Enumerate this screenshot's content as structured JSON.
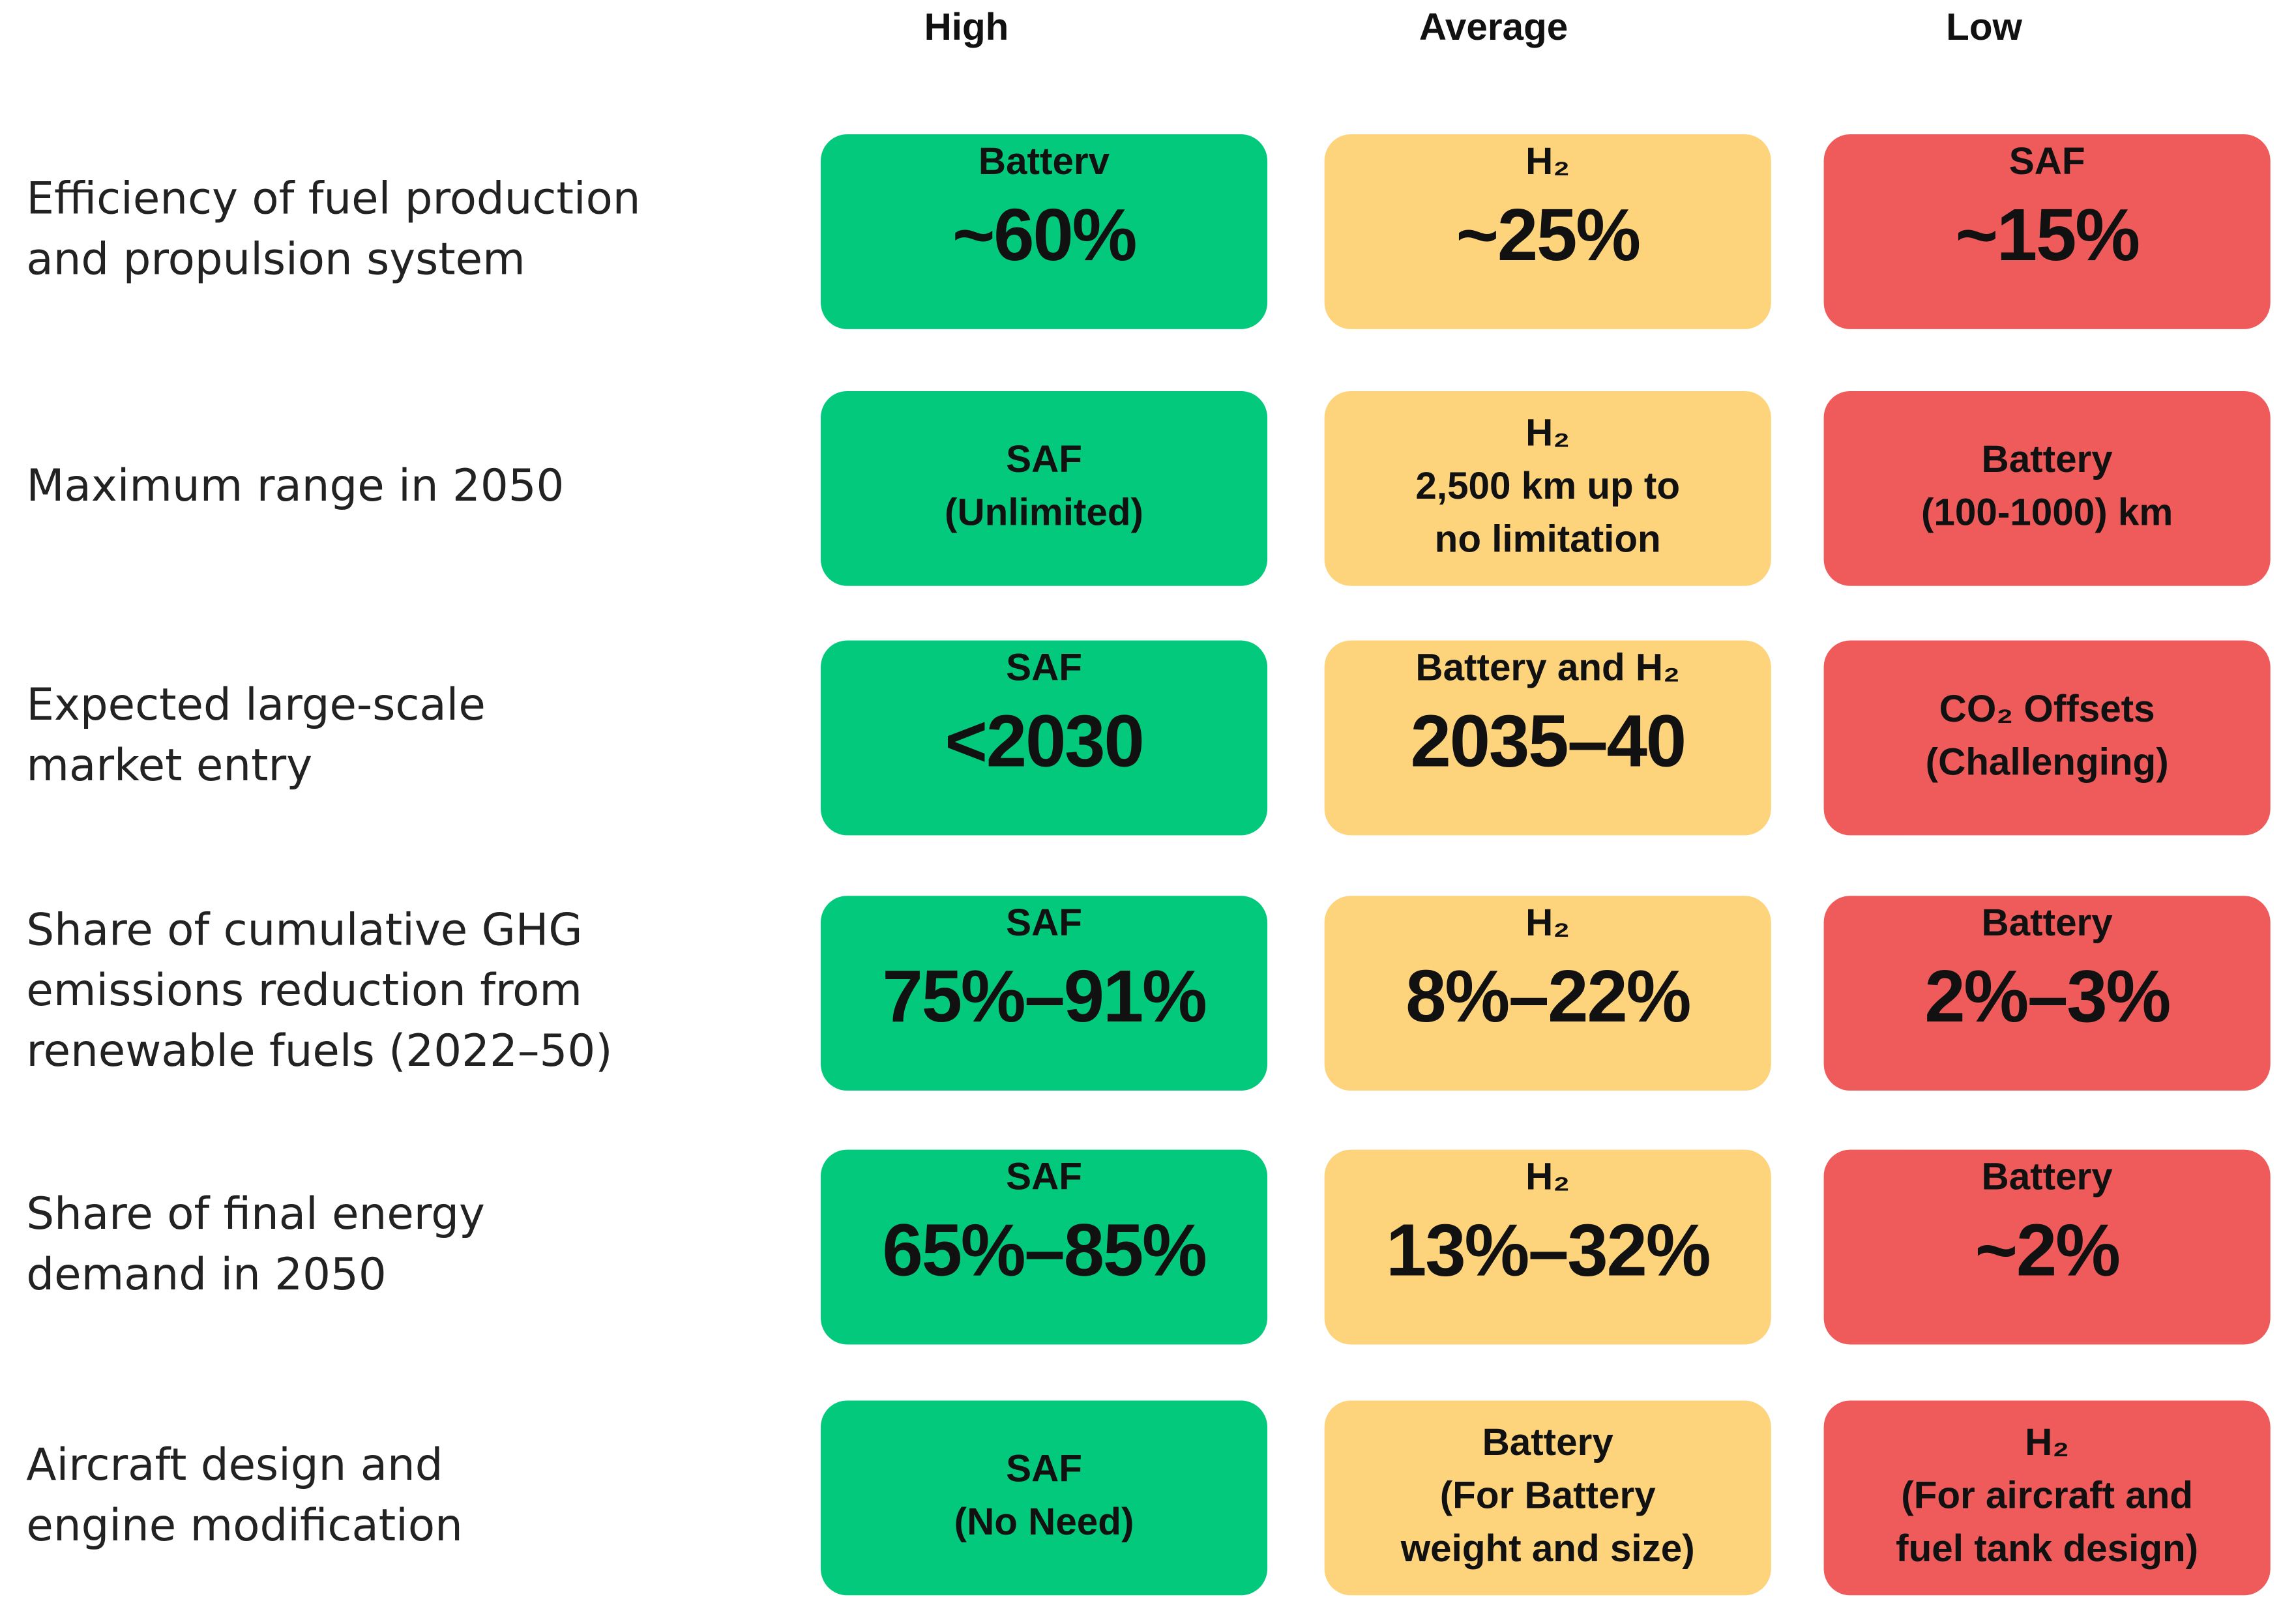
{
  "columns": [
    {
      "name": "High",
      "color": "#03c97c"
    },
    {
      "name": "Average",
      "color": "#fdd47b"
    },
    {
      "name": "Low",
      "color": "#ef5a5a"
    }
  ],
  "rows": [
    {
      "label": [
        "Efficiency of fuel production",
        "and propulsion system"
      ],
      "cells": [
        {
          "label": "Batterv",
          "value": "~60%"
        },
        {
          "label": "H₂",
          "value": "~25%"
        },
        {
          "label": "SAF",
          "value": "~15%"
        }
      ]
    },
    {
      "label": [
        "Maximum range in 2050"
      ],
      "cells": [
        {
          "label": "SAF",
          "note": [
            "(Unlimited)"
          ]
        },
        {
          "label": "H₂",
          "note": [
            "2,500 km up to",
            "no limitation"
          ]
        },
        {
          "label": "Battery",
          "note": [
            "(100-1000) km"
          ]
        }
      ]
    },
    {
      "label": [
        "Expected large-scale",
        "market entry"
      ],
      "cells": [
        {
          "label": "SAF",
          "value": "<2030"
        },
        {
          "label": "Battery and H₂",
          "value": "2035–40"
        },
        {
          "label": "CO₂ Offsets",
          "note": [
            "(Challenging)"
          ]
        }
      ]
    },
    {
      "label": [
        "Share of cumulative GHG",
        "emissions reduction from",
        "renewable fuels (2022–50)"
      ],
      "cells": [
        {
          "label": "SAF",
          "value": "75%–91%"
        },
        {
          "label": "H₂",
          "value": "8%–22%"
        },
        {
          "label": "Battery",
          "value": "2%–3%"
        }
      ]
    },
    {
      "label": [
        "Share of final energy",
        "demand in 2050"
      ],
      "cells": [
        {
          "label": "SAF",
          "value": "65%–85%"
        },
        {
          "label": "H₂",
          "value": "13%–32%"
        },
        {
          "label": "Battery",
          "value": "~2%"
        }
      ]
    },
    {
      "label": [
        "Aircraft design and",
        "engine modification"
      ],
      "cells": [
        {
          "label": "SAF",
          "note": [
            "(No Need)"
          ]
        },
        {
          "label": "Battery",
          "note": [
            "(For Battery",
            "weight and size)"
          ]
        },
        {
          "label": "H₂",
          "note": [
            "(For aircraft and",
            "fuel tank design)"
          ]
        }
      ]
    }
  ]
}
